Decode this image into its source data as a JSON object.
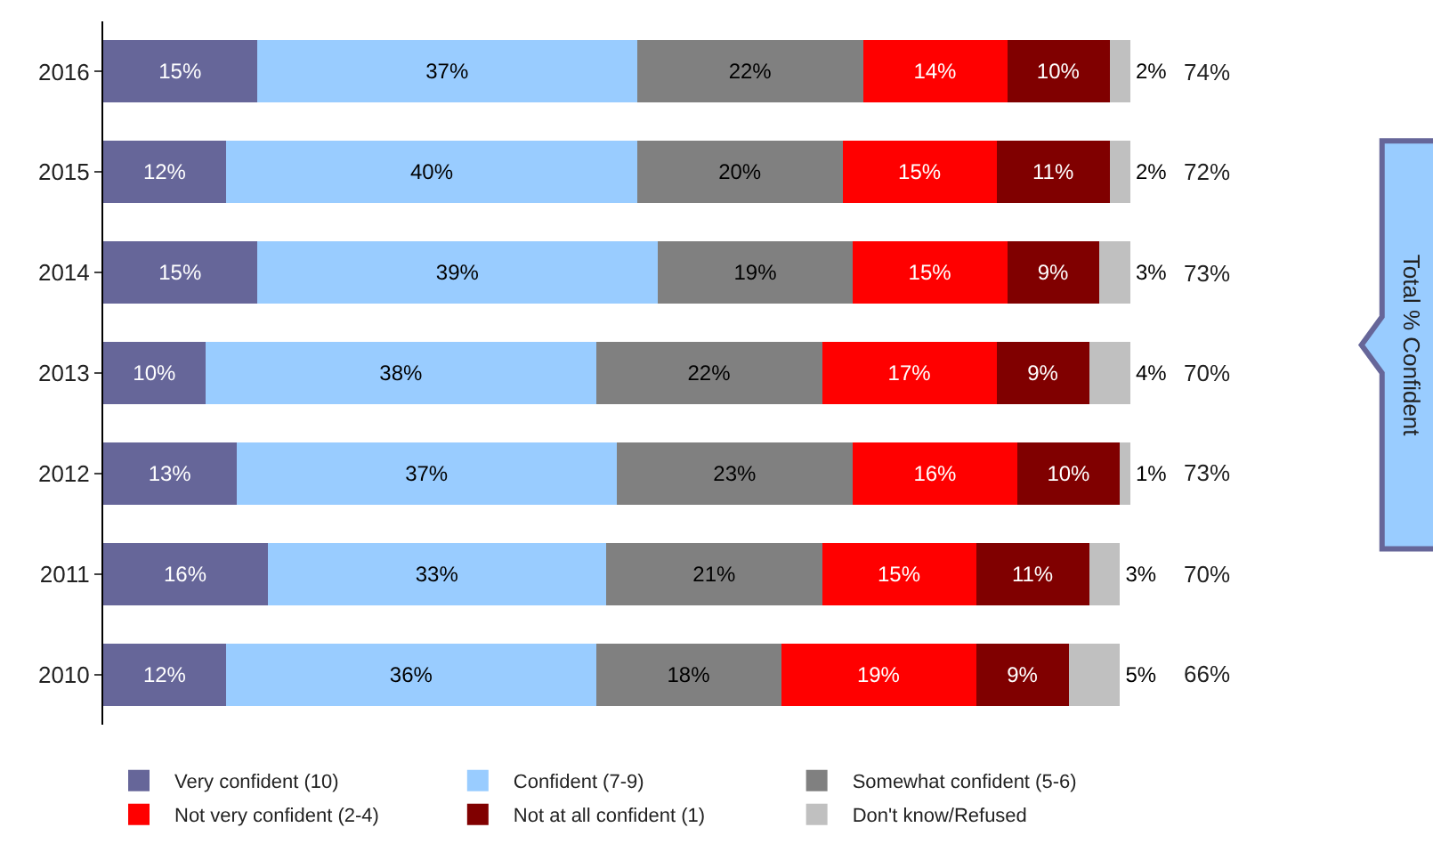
{
  "chart_data": {
    "type": "bar",
    "orientation": "horizontal",
    "stacked": true,
    "categories": [
      "2016",
      "2015",
      "2014",
      "2013",
      "2012",
      "2011",
      "2010"
    ],
    "xlim": [
      0,
      100
    ],
    "tick_labels": "y",
    "legend": "bottom",
    "series": [
      {
        "name": "Very confident (10)",
        "color": "#666699",
        "values": [
          15,
          12,
          15,
          10,
          13,
          16,
          12
        ],
        "value_labels": [
          "15%",
          "12%",
          "15%",
          "10%",
          "13%",
          "16%",
          "12%"
        ]
      },
      {
        "name": "Confident (7-9)",
        "color": "#99ccff",
        "values": [
          37,
          40,
          39,
          38,
          37,
          33,
          36
        ],
        "value_labels": [
          "37%",
          "40%",
          "39%",
          "38%",
          "37%",
          "33%",
          "36%"
        ]
      },
      {
        "name": "Somewhat confident (5-6)",
        "color": "#808080",
        "values": [
          22,
          20,
          19,
          22,
          23,
          21,
          18
        ],
        "value_labels": [
          "22%",
          "20%",
          "19%",
          "22%",
          "23%",
          "21%",
          "18%"
        ]
      },
      {
        "name": "Not very confident (2-4)",
        "color": "#ff0000",
        "values": [
          14,
          15,
          15,
          17,
          16,
          15,
          19
        ],
        "value_labels": [
          "14%",
          "15%",
          "15%",
          "17%",
          "16%",
          "15%",
          "19%"
        ]
      },
      {
        "name": "Not at all confident (1)",
        "color": "#800000",
        "values": [
          10,
          11,
          9,
          9,
          10,
          11,
          9
        ],
        "value_labels": [
          "10%",
          "11%",
          "9%",
          "9%",
          "10%",
          "11%",
          "9%"
        ]
      },
      {
        "name": "Don't know/Refused",
        "color": "#c0c0c0",
        "values": [
          2,
          2,
          3,
          4,
          1,
          3,
          5
        ],
        "value_labels": [
          "2%",
          "2%",
          "3%",
          "4%",
          "1%",
          "3%",
          "5%"
        ]
      }
    ],
    "annotations": [
      "74%",
      "72%",
      "73%",
      "70%",
      "73%",
      "70%",
      "66%",
      "Total % Confident"
    ]
  }
}
